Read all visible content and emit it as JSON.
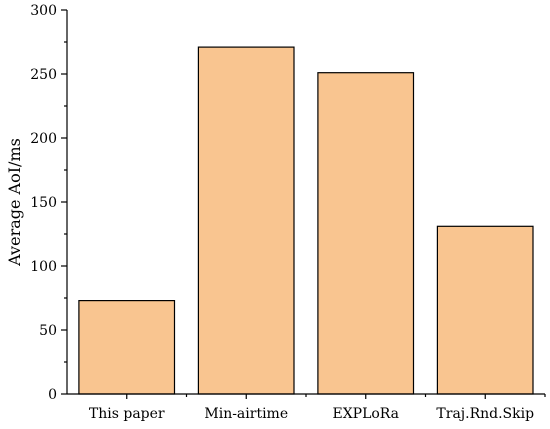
{
  "chart_data": {
    "type": "bar",
    "title": "",
    "xlabel": "",
    "ylabel": "Average AoI/ms",
    "categories": [
      "This paper",
      "Min-airtime",
      "EXPLoRa",
      "Traj.Rnd.Skip"
    ],
    "values": [
      73,
      271,
      251,
      131
    ],
    "ylim": [
      0,
      300
    ],
    "yticks": [
      0,
      50,
      100,
      150,
      200,
      250,
      300
    ],
    "bar_color": "#F9C590",
    "grid": false,
    "legend": "none"
  }
}
